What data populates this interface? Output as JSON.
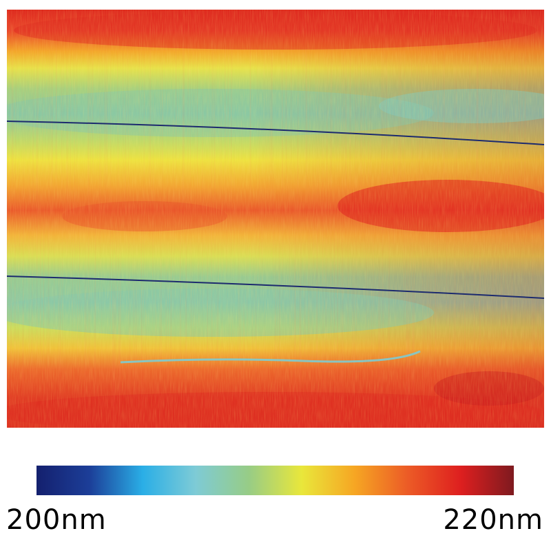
{
  "image": {
    "description_kind": "height-map",
    "palette": [
      "#14206e",
      "#1c3e98",
      "#2aaee6",
      "#7ecbd6",
      "#97cc86",
      "#e9e73b",
      "#f6a623",
      "#ec5b26",
      "#de1f1f",
      "#7e1a1f"
    ]
  },
  "colorbar": {
    "min_label": "200nm",
    "max_label": "220nm",
    "min_value": 200,
    "max_value": 220,
    "unit": "nm",
    "stops": [
      "#14206e",
      "#1c3e98",
      "#2aaee6",
      "#7ecbd6",
      "#97cc86",
      "#e9e73b",
      "#f6a623",
      "#ec5b26",
      "#de1f1f",
      "#7e1a1f"
    ]
  }
}
